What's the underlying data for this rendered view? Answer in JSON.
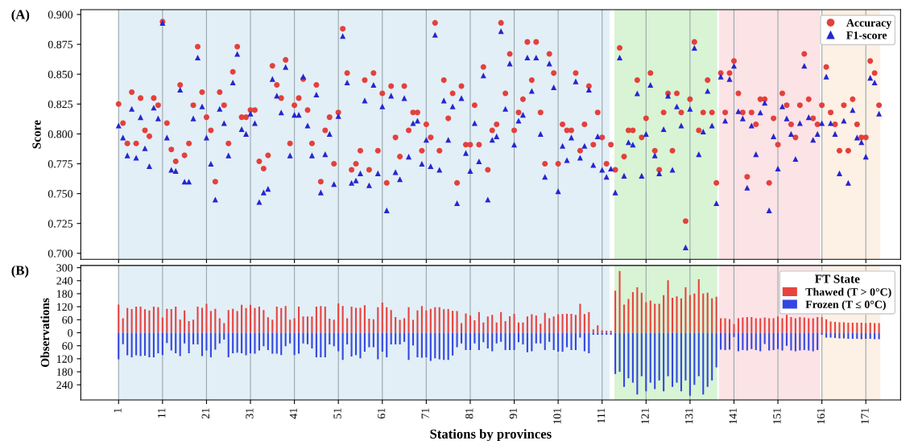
{
  "chart_data": [
    {
      "type": "scatter",
      "ylabel": "Score",
      "annotations": [
        "(A)"
      ],
      "x": [
        1,
        2,
        3,
        4,
        5,
        6,
        7,
        8,
        9,
        10,
        11,
        12,
        13,
        14,
        15,
        16,
        17,
        18,
        19,
        20,
        21,
        22,
        23,
        24,
        25,
        26,
        27,
        28,
        29,
        30,
        31,
        32,
        33,
        34,
        35,
        36,
        37,
        38,
        39,
        40,
        41,
        42,
        43,
        44,
        45,
        46,
        47,
        48,
        49,
        50,
        51,
        52,
        53,
        54,
        55,
        56,
        57,
        58,
        59,
        60,
        61,
        62,
        63,
        64,
        65,
        66,
        67,
        68,
        69,
        70,
        71,
        72,
        73,
        74,
        75,
        76,
        77,
        78,
        79,
        80,
        81,
        82,
        83,
        84,
        85,
        86,
        87,
        88,
        89,
        90,
        91,
        92,
        93,
        94,
        95,
        96,
        97,
        98,
        99,
        100,
        101,
        102,
        103,
        104,
        105,
        106,
        107,
        108,
        109,
        110,
        111,
        112,
        113,
        114,
        115,
        116,
        117,
        118,
        119,
        120,
        121,
        122,
        123,
        124,
        125,
        126,
        127,
        128,
        129,
        130,
        131,
        132,
        133,
        134,
        135,
        136,
        137,
        138,
        139,
        140,
        141,
        142,
        143,
        144,
        145,
        146,
        147,
        148,
        149,
        150,
        151,
        152,
        153,
        154,
        155,
        156,
        157,
        158,
        159,
        160,
        161,
        162,
        163,
        164,
        165,
        166,
        167,
        168,
        169,
        170,
        171,
        172,
        173,
        174
      ],
      "series": [
        {
          "name": "Accuracy",
          "color": "#e4403c",
          "marker": "circle",
          "values": [
            0.825,
            0.809,
            0.792,
            0.835,
            0.792,
            0.83,
            0.803,
            0.798,
            0.83,
            0.824,
            0.894,
            0.809,
            0.787,
            0.777,
            0.841,
            0.782,
            0.792,
            0.824,
            0.873,
            0.835,
            0.814,
            0.803,
            0.76,
            0.835,
            0.824,
            0.792,
            0.852,
            0.873,
            0.814,
            0.814,
            0.82,
            0.82,
            0.777,
            0.771,
            0.782,
            0.857,
            0.841,
            0.83,
            0.862,
            0.792,
            0.824,
            0.83,
            0.846,
            0.82,
            0.792,
            0.841,
            0.76,
            0.803,
            0.814,
            0.775,
            0.818,
            0.888,
            0.851,
            0.77,
            0.775,
            0.786,
            0.845,
            0.77,
            0.851,
            0.786,
            0.834,
            0.759,
            0.84,
            0.797,
            0.781,
            0.84,
            0.803,
            0.818,
            0.818,
            0.786,
            0.808,
            0.797,
            0.893,
            0.786,
            0.845,
            0.813,
            0.834,
            0.759,
            0.84,
            0.791,
            0.791,
            0.824,
            0.791,
            0.856,
            0.77,
            0.803,
            0.808,
            0.893,
            0.834,
            0.867,
            0.803,
            0.818,
            0.829,
            0.877,
            0.845,
            0.877,
            0.818,
            0.775,
            0.867,
            0.851,
            0.775,
            0.808,
            0.803,
            0.803,
            0.851,
            0.786,
            0.808,
            0.84,
            0.791,
            0.818,
            0.797,
            0.775,
            0.791,
            0.77,
            0.872,
            0.781,
            0.803,
            0.803,
            0.845,
            0.797,
            0.813,
            0.851,
            0.786,
            0.77,
            0.818,
            0.834,
            0.786,
            0.834,
            0.818,
            0.727,
            0.829,
            0.877,
            0.803,
            0.818,
            0.845,
            0.818,
            0.759,
            0.851,
            0.818,
            0.851,
            0.861,
            0.834,
            0.818,
            0.764,
            0.818,
            0.808,
            0.829,
            0.829,
            0.759,
            0.813,
            0.791,
            0.834,
            0.824,
            0.808,
            0.797,
            0.824,
            0.867,
            0.829,
            0.813,
            0.808,
            0.824,
            0.856,
            0.818,
            0.808,
            0.786,
            0.824,
            0.786,
            0.829,
            0.808,
            0.797,
            0.797,
            0.861,
            0.851,
            0.824
          ]
        },
        {
          "name": "F1-score",
          "color": "#2626d0",
          "marker": "triangle",
          "values": [
            0.807,
            0.797,
            0.782,
            0.821,
            0.78,
            0.814,
            0.788,
            0.773,
            0.822,
            0.813,
            0.893,
            0.797,
            0.77,
            0.769,
            0.837,
            0.76,
            0.76,
            0.813,
            0.864,
            0.823,
            0.797,
            0.775,
            0.745,
            0.821,
            0.809,
            0.782,
            0.843,
            0.867,
            0.804,
            0.8,
            0.817,
            0.809,
            0.743,
            0.751,
            0.754,
            0.846,
            0.832,
            0.818,
            0.856,
            0.782,
            0.816,
            0.816,
            0.848,
            0.807,
            0.782,
            0.833,
            0.751,
            0.783,
            0.8,
            0.758,
            0.815,
            0.882,
            0.843,
            0.759,
            0.761,
            0.767,
            0.828,
            0.757,
            0.841,
            0.767,
            0.823,
            0.736,
            0.832,
            0.768,
            0.762,
            0.83,
            0.781,
            0.809,
            0.811,
            0.775,
            0.795,
            0.773,
            0.883,
            0.77,
            0.828,
            0.795,
            0.823,
            0.742,
            0.83,
            0.784,
            0.769,
            0.809,
            0.777,
            0.849,
            0.745,
            0.795,
            0.798,
            0.886,
            0.821,
            0.859,
            0.791,
            0.811,
            0.816,
            0.864,
            0.836,
            0.864,
            0.8,
            0.764,
            0.859,
            0.839,
            0.752,
            0.79,
            0.778,
            0.797,
            0.844,
            0.78,
            0.79,
            0.837,
            0.774,
            0.798,
            0.77,
            0.764,
            0.771,
            0.751,
            0.864,
            0.765,
            0.793,
            0.791,
            0.834,
            0.765,
            0.8,
            0.841,
            0.782,
            0.767,
            0.804,
            0.832,
            0.77,
            0.823,
            0.807,
            0.705,
            0.821,
            0.872,
            0.783,
            0.802,
            0.836,
            0.807,
            0.742,
            0.848,
            0.811,
            0.846,
            0.857,
            0.819,
            0.813,
            0.755,
            0.807,
            0.783,
            0.818,
            0.826,
            0.736,
            0.798,
            0.771,
            0.823,
            0.813,
            0.8,
            0.779,
            0.809,
            0.857,
            0.814,
            0.795,
            0.8,
            0.809,
            0.848,
            0.809,
            0.8,
            0.767,
            0.811,
            0.759,
            0.82,
            0.797,
            0.793,
            0.781,
            0.847,
            0.843,
            0.817
          ]
        }
      ],
      "xlim": [
        -7.6,
        178.9
      ],
      "xticks": [
        1,
        11,
        21,
        31,
        41,
        51,
        61,
        71,
        81,
        91,
        101,
        111,
        121,
        131,
        141,
        151,
        161,
        171
      ],
      "ylim": [
        0.695,
        0.904
      ],
      "yticks": [
        {
          "value": 0.7,
          "label": "0.700"
        },
        {
          "value": 0.725,
          "label": "0.725"
        },
        {
          "value": 0.75,
          "label": "0.750"
        },
        {
          "value": 0.775,
          "label": "0.775"
        },
        {
          "value": 0.8,
          "label": "0.800"
        },
        {
          "value": 0.825,
          "label": "0.825"
        },
        {
          "value": 0.85,
          "label": "0.850"
        },
        {
          "value": 0.875,
          "label": "0.875"
        },
        {
          "value": 0.9,
          "label": "0.900"
        }
      ],
      "tick_labels": "y",
      "grid": "x",
      "legend": "top right",
      "bands": [
        {
          "axis": "x",
          "from": 1,
          "to": 112.7,
          "color": "#e2eff6"
        },
        {
          "axis": "x",
          "from": 113.8,
          "to": 137.2,
          "color": "#d8f4d4"
        },
        {
          "axis": "x",
          "from": 137.6,
          "to": 160.6,
          "color": "#fbe3e6"
        },
        {
          "axis": "x",
          "from": 161,
          "to": 174.3,
          "color": "#fdf0e4"
        }
      ]
    },
    {
      "type": "bar",
      "stacked": true,
      "xlabel": "Stations by provinces",
      "ylabel": "Observations",
      "annotations": [
        "(B)"
      ],
      "legend_title": "FT State",
      "x": [
        1,
        2,
        3,
        4,
        5,
        6,
        7,
        8,
        9,
        10,
        11,
        12,
        13,
        14,
        15,
        16,
        17,
        18,
        19,
        20,
        21,
        22,
        23,
        24,
        25,
        26,
        27,
        28,
        29,
        30,
        31,
        32,
        33,
        34,
        35,
        36,
        37,
        38,
        39,
        40,
        41,
        42,
        43,
        44,
        45,
        46,
        47,
        48,
        49,
        50,
        51,
        52,
        53,
        54,
        55,
        56,
        57,
        58,
        59,
        60,
        61,
        62,
        63,
        64,
        65,
        66,
        67,
        68,
        69,
        70,
        71,
        72,
        73,
        74,
        75,
        76,
        77,
        78,
        79,
        80,
        81,
        82,
        83,
        84,
        85,
        86,
        87,
        88,
        89,
        90,
        91,
        92,
        93,
        94,
        95,
        96,
        97,
        98,
        99,
        100,
        101,
        102,
        103,
        104,
        105,
        106,
        107,
        108,
        109,
        110,
        111,
        112,
        113,
        114,
        115,
        116,
        117,
        118,
        119,
        120,
        121,
        122,
        123,
        124,
        125,
        126,
        127,
        128,
        129,
        130,
        131,
        132,
        133,
        134,
        135,
        136,
        137,
        138,
        139,
        140,
        141,
        142,
        143,
        144,
        145,
        146,
        147,
        148,
        149,
        150,
        151,
        152,
        153,
        154,
        155,
        156,
        157,
        158,
        159,
        160,
        161,
        162,
        163,
        164,
        165,
        166,
        167,
        168,
        169,
        170,
        171,
        172,
        173,
        174
      ],
      "series": [
        {
          "name": "Thawed (T > 0°C)",
          "color": "#e8423f",
          "values": [
            130,
            67,
            114,
            109,
            120,
            120,
            108,
            103,
            120,
            118,
            70,
            110,
            109,
            120,
            61,
            103,
            54,
            60,
            120,
            115,
            133,
            100,
            110,
            67,
            44,
            105,
            110,
            100,
            129,
            114,
            129,
            114,
            120,
            105,
            71,
            60,
            120,
            114,
            123,
            60,
            67,
            120,
            75,
            75,
            75,
            120,
            123,
            120,
            65,
            60,
            135,
            123,
            67,
            120,
            115,
            115,
            127,
            65,
            62,
            118,
            139,
            118,
            105,
            72,
            59,
            67,
            118,
            59,
            103,
            123,
            103,
            110,
            118,
            118,
            108,
            109,
            101,
            100,
            44,
            89,
            80,
            57,
            95,
            47,
            75,
            82,
            47,
            95,
            54,
            76,
            87,
            47,
            47,
            75,
            85,
            80,
            42,
            92,
            67,
            75,
            85,
            86,
            87,
            87,
            82,
            133,
            86,
            95,
            16,
            34,
            11,
            9,
            9,
            194,
            285,
            130,
            156,
            187,
            209,
            184,
            141,
            148,
            133,
            133,
            173,
            242,
            161,
            168,
            158,
            209,
            173,
            181,
            247,
            181,
            184,
            158,
            166,
            67,
            67,
            63,
            40,
            67,
            70,
            72,
            72,
            67,
            67,
            70,
            67,
            67,
            75,
            67,
            82,
            72,
            67,
            72,
            70,
            67,
            67,
            72,
            72,
            62,
            52,
            50,
            48,
            48,
            46,
            46,
            46,
            46,
            44,
            46,
            44,
            44
          ]
        },
        {
          "name": "Frozen (T ≤ 0°C)",
          "color": "#3346e0",
          "values": [
            -123,
            -53,
            -104,
            -113,
            -104,
            -108,
            -106,
            -113,
            -113,
            -95,
            -103,
            -47,
            -82,
            -95,
            -108,
            -49,
            -95,
            -54,
            -54,
            -108,
            -82,
            -113,
            -78,
            -49,
            -32,
            -113,
            -95,
            -92,
            -95,
            -104,
            -95,
            -97,
            -82,
            -62,
            -80,
            -97,
            -97,
            -103,
            -62,
            -49,
            -103,
            -97,
            -49,
            -53,
            -72,
            -113,
            -113,
            -113,
            -54,
            -62,
            -85,
            -125,
            -54,
            -110,
            -103,
            -118,
            -87,
            -67,
            -67,
            -123,
            -87,
            -113,
            -54,
            -54,
            -54,
            -42,
            -125,
            -59,
            -113,
            -115,
            -113,
            -130,
            -118,
            -123,
            -125,
            -125,
            -105,
            -67,
            -49,
            -80,
            -80,
            -49,
            -80,
            -44,
            -72,
            -85,
            -49,
            -42,
            -80,
            -80,
            -80,
            -44,
            -54,
            -90,
            -85,
            -49,
            -49,
            -80,
            -42,
            -80,
            -87,
            -87,
            -67,
            -80,
            -80,
            -22,
            -85,
            -95,
            -9,
            -9,
            -9,
            -9,
            -9,
            -190,
            -180,
            -250,
            -210,
            -230,
            -285,
            -200,
            -270,
            -230,
            -260,
            -220,
            -270,
            -200,
            -250,
            -230,
            -270,
            -220,
            -290,
            -240,
            -200,
            -285,
            -250,
            -220,
            -160,
            -78,
            -80,
            -78,
            -20,
            -85,
            -80,
            -82,
            -75,
            -80,
            -85,
            -52,
            -82,
            -80,
            -75,
            -82,
            -60,
            -82,
            -85,
            -82,
            -80,
            -82,
            -85,
            -80,
            -9,
            -22,
            -22,
            -24,
            -26,
            -26,
            -28,
            -28,
            -28,
            -30,
            -28,
            -28,
            -30,
            -30
          ]
        }
      ],
      "xlim": [
        -7.6,
        178.9
      ],
      "xticks": [
        1,
        11,
        21,
        31,
        41,
        51,
        61,
        71,
        81,
        91,
        101,
        111,
        121,
        131,
        141,
        151,
        161,
        171
      ],
      "ylim": [
        -310,
        310
      ],
      "yticks": [
        {
          "value": -240,
          "label": "240"
        },
        {
          "value": -180,
          "label": "180"
        },
        {
          "value": -120,
          "label": "120"
        },
        {
          "value": -60,
          "label": "60"
        },
        0,
        60,
        120,
        180,
        240,
        300
      ],
      "grid": "x",
      "legend": "top right",
      "bands": [
        {
          "axis": "x",
          "from": 1,
          "to": 112.7,
          "color": "#e2eff6"
        },
        {
          "axis": "x",
          "from": 113.8,
          "to": 137.2,
          "color": "#d8f4d4"
        },
        {
          "axis": "x",
          "from": 137.6,
          "to": 160.6,
          "color": "#fbe3e6"
        },
        {
          "axis": "x",
          "from": 161,
          "to": 174.3,
          "color": "#fdf0e4"
        }
      ]
    }
  ]
}
